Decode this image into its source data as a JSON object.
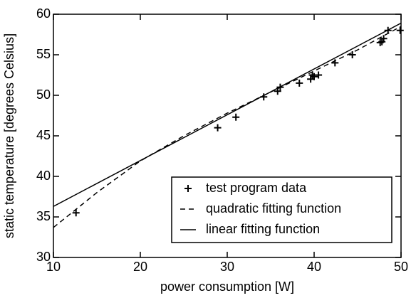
{
  "chart_data": {
    "type": "line",
    "x_label": "power consumption [W]",
    "y_label": "static temperature [degrees Celsius]",
    "xlim": [
      10,
      50
    ],
    "xticks": [
      10,
      20,
      30,
      40,
      50
    ],
    "ylim": [
      30,
      60
    ],
    "yticks": [
      30,
      35,
      40,
      45,
      50,
      55,
      60
    ],
    "grid": false,
    "legend": "lower right",
    "series": [
      {
        "name": "test program data",
        "color": "#000000",
        "style": "plus",
        "x": [
          12.6,
          28.9,
          31.0,
          34.2,
          35.8,
          36.1,
          38.3,
          39.6,
          39.8,
          40.0,
          40.5,
          42.4,
          44.4,
          47.6,
          47.8,
          48.0,
          48.5,
          49.9
        ],
        "values": [
          35.5,
          46.0,
          47.3,
          49.8,
          50.5,
          51.0,
          51.5,
          52.0,
          52.5,
          52.3,
          52.5,
          54.0,
          55.0,
          56.5,
          56.6,
          57.0,
          58.0,
          58.0
        ]
      },
      {
        "name": "quadratic fitting function",
        "color": "#000000",
        "style": "dashed",
        "x": [
          10,
          15,
          20,
          25,
          30,
          35,
          40,
          45,
          50
        ],
        "values": [
          33.7,
          38.0,
          41.9,
          45.0,
          47.8,
          50.4,
          53.0,
          55.6,
          58.5
        ]
      },
      {
        "name": "linear fitting function",
        "color": "#000000",
        "style": "solid",
        "x": [
          10,
          50
        ],
        "values": [
          36.3,
          58.9
        ]
      }
    ]
  }
}
